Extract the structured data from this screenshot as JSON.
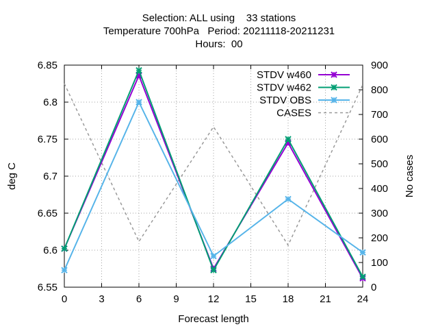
{
  "chart_data": {
    "type": "line",
    "title_lines": [
      "Selection: ALL using    33 stations",
      "Temperature 700hPa   Period: 20211118-20211231",
      "Hours:  00"
    ],
    "xlabel": "Forecast length",
    "ylabel": "deg C",
    "y2label": "No cases",
    "x": [
      0,
      6,
      12,
      18,
      24
    ],
    "xlim": [
      0,
      24
    ],
    "xticks": [
      "0",
      "3",
      "6",
      "9",
      "12",
      "15",
      "18",
      "21",
      "24"
    ],
    "ylim": [
      6.55,
      6.85
    ],
    "yticks": [
      "6.55",
      "6.6",
      "6.65",
      "6.7",
      "6.75",
      "6.8",
      "6.85"
    ],
    "y2lim": [
      0,
      900
    ],
    "y2ticks": [
      "0",
      "100",
      "200",
      "300",
      "400",
      "500",
      "600",
      "700",
      "800",
      "900"
    ],
    "grid": true,
    "legend_position": "top-right",
    "series": [
      {
        "name": "STDV w460",
        "axis": "left",
        "color": "#9400d3",
        "marker": "x",
        "values": [
          6.602,
          6.836,
          6.575,
          6.745,
          6.562
        ]
      },
      {
        "name": "STDV w462",
        "axis": "left",
        "color": "#009e73",
        "marker": "x",
        "values": [
          6.602,
          6.843,
          6.573,
          6.75,
          6.564
        ]
      },
      {
        "name": "STDV OBS",
        "axis": "left",
        "color": "#56b4e9",
        "marker": "x",
        "values": [
          6.573,
          6.8,
          6.592,
          6.669,
          6.597
        ]
      },
      {
        "name": "CASES",
        "axis": "right",
        "color": "#999999",
        "dashed": true,
        "values": [
          825,
          185,
          650,
          170,
          820
        ]
      }
    ]
  }
}
